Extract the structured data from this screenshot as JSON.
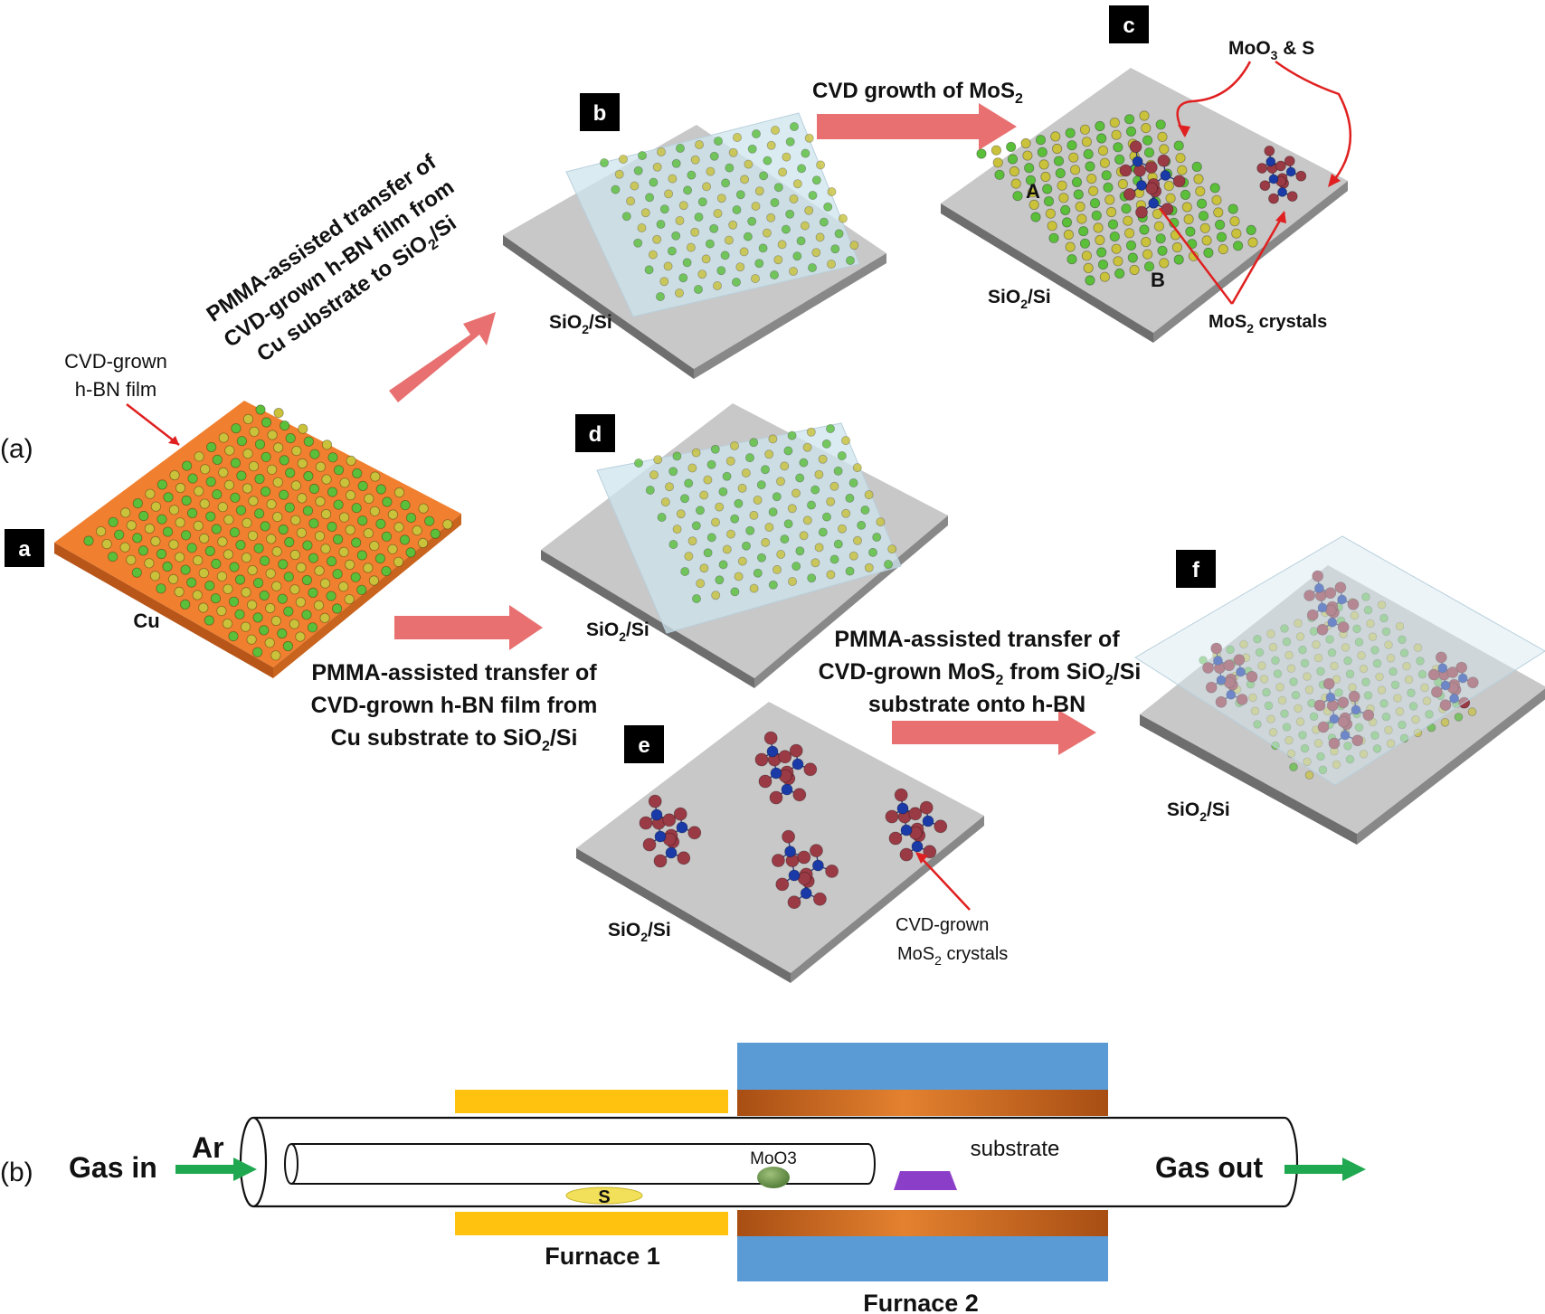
{
  "panels": {
    "a": {
      "badge": "a",
      "substrate": "Cu",
      "film_label_1": "CVD-grown",
      "film_label_2": "h-BN film"
    },
    "b": {
      "badge": "b",
      "substrate_prefix": "SiO",
      "substrate_sub": "2",
      "substrate_suffix": "/Si"
    },
    "c": {
      "badge": "c",
      "substrate_prefix": "SiO",
      "substrate_sub": "2",
      "substrate_suffix": "/Si",
      "precursor_prefix": "MoO",
      "precursor_sub": "3",
      "precursor_suffix": " & S",
      "crystal_prefix": "MoS",
      "crystal_sub": "2",
      "crystal_suffix": " crystals",
      "site_a": "A",
      "site_b": "B"
    },
    "d": {
      "badge": "d",
      "substrate_prefix": "SiO",
      "substrate_sub": "2",
      "substrate_suffix": "/Si"
    },
    "e": {
      "badge": "e",
      "substrate_prefix": "SiO",
      "substrate_sub": "2",
      "substrate_suffix": "/Si",
      "crystal_label_1": "CVD-grown",
      "crystal_label_2_prefix": "MoS",
      "crystal_label_2_sub": "2",
      "crystal_label_2_suffix": " crystals"
    },
    "f": {
      "badge": "f",
      "substrate_prefix": "SiO",
      "substrate_sub": "2",
      "substrate_suffix": "/Si"
    }
  },
  "steps": {
    "transfer_up": {
      "line1": "PMMA-assisted transfer of",
      "line2": "CVD-grown h-BN film from",
      "line3_prefix": "Cu substrate to SiO",
      "line3_sub": "2",
      "line3_suffix": "/Si"
    },
    "cvd_growth": {
      "prefix": "CVD growth of MoS",
      "sub": "2"
    },
    "transfer_down": {
      "line1": "PMMA-assisted transfer of",
      "line2": "CVD-grown h-BN film from",
      "line3_prefix": "Cu substrate to SiO",
      "line3_sub": "2",
      "line3_suffix": "/Si"
    },
    "transfer_mos2": {
      "line1": "PMMA-assisted transfer of",
      "line2_prefix": "CVD-grown MoS",
      "line2_sub": "2",
      "line2_mid": " from SiO",
      "line2_sub2": "2",
      "line2_suffix": "/Si",
      "line3": "substrate  onto h-BN"
    }
  },
  "part_labels": {
    "a": "(a)",
    "b": "(b)"
  },
  "furnace": {
    "gas_in": "Gas in",
    "carrier": "Ar",
    "gas_out": "Gas out",
    "source_moo3": "MoO3",
    "source_s": "S",
    "substrate": "substrate",
    "furnace1": "Furnace 1",
    "furnace2": "Furnace 2"
  },
  "colors": {
    "copper": "#F08030",
    "substrate_gray": "#C8C8C8",
    "arrow_pink": "#E87070",
    "nitrogen_green": "#5BBF3A",
    "boron_yellow": "#C9C23A",
    "mo_blue": "#1A3AA8",
    "s_red": "#9A3A45",
    "furnace1_yellow": "#FFC20E",
    "furnace2_blue": "#5B9BD5",
    "furnace2_orange": "#C8651F",
    "gas_arrow_green": "#1FA84F",
    "substrate_purple": "#8B3FC8"
  }
}
